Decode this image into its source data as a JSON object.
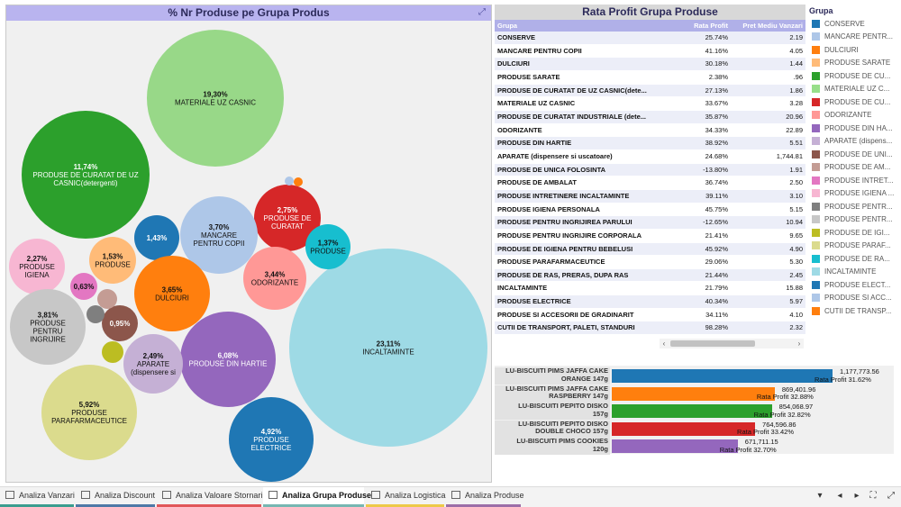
{
  "bubble_panel": {
    "title": "% Nr Produse pe Grupa Produs",
    "expand_icon": "expand-icon",
    "bubbles": [
      {
        "pct": "19,30%",
        "label": [
          "MATERIALE UZ CASNIC"
        ],
        "color": "#98d888"
      },
      {
        "pct": "11,74%",
        "label": [
          "PRODUSE DE CURATAT DE UZ",
          "CASNIC(detergenti)"
        ],
        "color": "#2ca02c"
      },
      {
        "pct": "23,11%",
        "label": [
          "INCALTAMINTE"
        ],
        "color": "#9edae5"
      },
      {
        "pct": "2,75%",
        "label": [
          "PRODUSE DE",
          "CURATAT"
        ],
        "color": "#d62728"
      },
      {
        "pct": "1,37%",
        "label": [
          "PRODUSE"
        ],
        "color": "#17becf"
      },
      {
        "pct": "3,70%",
        "label": [
          "MANCARE",
          "PENTRU COPII"
        ],
        "color": "#aec7e8"
      },
      {
        "pct": "1,43%",
        "label": [],
        "color": "#1f77b4"
      },
      {
        "pct": "3,44%",
        "label": [
          "ODORIZANTE"
        ],
        "color": "#ff9896"
      },
      {
        "pct": "2,27%",
        "label": [
          "PRODUSE",
          "IGIENA"
        ],
        "color": "#f7b6d2"
      },
      {
        "pct": "1,53%",
        "label": [
          "PRODUSE"
        ],
        "color": "#ffbb78"
      },
      {
        "pct": "0,63%",
        "label": [],
        "color": "#e377c2"
      },
      {
        "pct": "3,65%",
        "label": [
          "DULCIURI"
        ],
        "color": "#ff7f0e"
      },
      {
        "pct": "3,81%",
        "label": [
          "PRODUSE",
          "PENTRU",
          "INGRIJIRE"
        ],
        "color": "#c7c7c7"
      },
      {
        "pct": "0,95%",
        "label": [],
        "color": "#8c564b"
      },
      {
        "pct": "6,08%",
        "label": [
          "PRODUSE DIN HARTIE"
        ],
        "color": "#9467bd"
      },
      {
        "pct": "2,49%",
        "label": [
          "APARATE",
          "(dispensere si"
        ],
        "color": "#c5b0d5"
      },
      {
        "pct": "5,92%",
        "label": [
          "PRODUSE",
          "PARAFARMACEUTICE"
        ],
        "color": "#dbdb8d"
      },
      {
        "pct": "4,92%",
        "label": [
          "PRODUSE",
          "ELECTRICE"
        ],
        "color": "#1f77b4"
      },
      {
        "pct": "",
        "label": [],
        "color": "#c49c94"
      },
      {
        "pct": "",
        "label": [],
        "color": "#7f7f7f"
      },
      {
        "pct": "",
        "label": [],
        "color": "#bcbd22"
      },
      {
        "pct": "",
        "label": [],
        "color": "#aec7e8"
      },
      {
        "pct": "",
        "label": [],
        "color": "#ff7f0e"
      }
    ]
  },
  "table": {
    "title": "Rata Profit Grupa Produse",
    "headers": [
      "Grupa",
      "Rata Profit",
      "Pret Mediu Vanzari"
    ],
    "rows": [
      [
        "CONSERVE",
        "25.74%",
        "2.19"
      ],
      [
        "MANCARE PENTRU COPII",
        "41.16%",
        "4.05"
      ],
      [
        "DULCIURI",
        "30.18%",
        "1.44"
      ],
      [
        "PRODUSE SARATE",
        "2.38%",
        ".96"
      ],
      [
        "PRODUSE DE CURATAT DE UZ CASNIC(dete...",
        "27.13%",
        "1.86"
      ],
      [
        "MATERIALE UZ CASNIC",
        "33.67%",
        "3.28"
      ],
      [
        "PRODUSE DE CURATAT INDUSTRIALE (dete...",
        "35.87%",
        "20.96"
      ],
      [
        "ODORIZANTE",
        "34.33%",
        "22.89"
      ],
      [
        "PRODUSE DIN HARTIE",
        "38.92%",
        "5.51"
      ],
      [
        "APARATE (dispensere si uscatoare)",
        "24.68%",
        "1,744.81"
      ],
      [
        "PRODUSE DE UNICA FOLOSINTA",
        "-13.80%",
        "1.91"
      ],
      [
        "PRODUSE DE AMBALAT",
        "36.74%",
        "2.50"
      ],
      [
        "PRODUSE INTRETINERE INCALTAMINTE",
        "39.11%",
        "3.10"
      ],
      [
        "PRODUSE IGIENA PERSONALA",
        "45.75%",
        "5.15"
      ],
      [
        "PRODUSE PENTRU INGRIJIREA PARULUI",
        "-12.65%",
        "10.94"
      ],
      [
        "PRODUSE PENTRU INGRIJIRE CORPORALA",
        "21.41%",
        "9.65"
      ],
      [
        "PRODUSE DE IGIENA PENTRU BEBELUSI",
        "45.92%",
        "4.90"
      ],
      [
        "PRODUSE PARAFARMACEUTICE",
        "29.06%",
        "5.30"
      ],
      [
        "PRODUSE DE RAS, PRERAS, DUPA RAS",
        "21.44%",
        "2.45"
      ],
      [
        "INCALTAMINTE",
        "21.79%",
        "15.88"
      ],
      [
        "PRODUSE ELECTRICE",
        "40.34%",
        "5.97"
      ],
      [
        "PRODUSE SI ACCESORII DE GRADINARIT",
        "34.11%",
        "4.10"
      ],
      [
        "CUTII DE TRANSPORT, PALETI, STANDURI",
        "98.28%",
        "2.32"
      ]
    ],
    "scroll_left": "‹",
    "scroll_right": "›"
  },
  "legend": {
    "title": "Grupa",
    "items": [
      {
        "label": "CONSERVE",
        "color": "#1f77b4"
      },
      {
        "label": "MANCARE PENTR...",
        "color": "#aec7e8"
      },
      {
        "label": "DULCIURI",
        "color": "#ff7f0e"
      },
      {
        "label": "PRODUSE SARATE",
        "color": "#ffbb78"
      },
      {
        "label": "PRODUSE DE CU...",
        "color": "#2ca02c"
      },
      {
        "label": "MATERIALE UZ C...",
        "color": "#98df8a"
      },
      {
        "label": "PRODUSE DE CU...",
        "color": "#d62728"
      },
      {
        "label": "ODORIZANTE",
        "color": "#ff9896"
      },
      {
        "label": "PRODUSE DIN HA...",
        "color": "#9467bd"
      },
      {
        "label": "APARATE (dispens...",
        "color": "#c5b0d5"
      },
      {
        "label": "PRODUSE DE UNI...",
        "color": "#8c564b"
      },
      {
        "label": "PRODUSE DE AM...",
        "color": "#c49c94"
      },
      {
        "label": "PRODUSE INTRET...",
        "color": "#e377c2"
      },
      {
        "label": "PRODUSE IGIENA ...",
        "color": "#f7b6d2"
      },
      {
        "label": "PRODUSE PENTR...",
        "color": "#7f7f7f"
      },
      {
        "label": "PRODUSE PENTR...",
        "color": "#c7c7c7"
      },
      {
        "label": "PRODUSE DE IGI...",
        "color": "#bcbd22"
      },
      {
        "label": "PRODUSE PARAF...",
        "color": "#dbdb8d"
      },
      {
        "label": "PRODUSE DE RA...",
        "color": "#17becf"
      },
      {
        "label": "INCALTAMINTE",
        "color": "#9edae5"
      },
      {
        "label": "PRODUSE ELECT...",
        "color": "#1f77b4"
      },
      {
        "label": "PRODUSE SI ACC...",
        "color": "#aec7e8"
      },
      {
        "label": "CUTII DE TRANSP...",
        "color": "#ff7f0e"
      }
    ]
  },
  "bar_chart": {
    "max_value": 1177773.56,
    "bars": [
      {
        "label": [
          "LU-BISCUITI PIMS JAFFA CAKE",
          "ORANGE 147g"
        ],
        "value": 1177773.56,
        "value_text": "1,177,773.56",
        "rate_text": "Rata Profit 31.62%",
        "color": "#1f77b4"
      },
      {
        "label": [
          "LU-BISCUITI PIMS JAFFA CAKE",
          "RASPBERRY 147g"
        ],
        "value": 869401.96,
        "value_text": "869,401.96",
        "rate_text": "Rata Profit 32.88%",
        "color": "#ff7f0e"
      },
      {
        "label": [
          "LU-BISCUITI PEPITO DISKO",
          "157g"
        ],
        "value": 854068.97,
        "value_text": "854,068.97",
        "rate_text": "Rata Profit 32.82%",
        "color": "#2ca02c"
      },
      {
        "label": [
          "LU-BISCUITI PEPITO DISKO",
          "DOUBLE CHOCO 157g"
        ],
        "value": 764596.86,
        "value_text": "764,596.86",
        "rate_text": "Rata Profit 33.42%",
        "color": "#d62728"
      },
      {
        "label": [
          "LU-BISCUITI PIMS COOKIES",
          "120g"
        ],
        "value": 671711.15,
        "value_text": "671,711.15",
        "rate_text": "Rata Profit 32.70%",
        "color": "#9467bd"
      }
    ]
  },
  "tabs": [
    {
      "label": "Analiza Vanzari",
      "color": "#3a9d8f",
      "active": false
    },
    {
      "label": "Analiza Discount",
      "color": "#4e79a7",
      "active": false
    },
    {
      "label": "Analiza Valoare Stornari",
      "color": "#e15759",
      "active": false
    },
    {
      "label": "Analiza Grupa Produse",
      "color": "#76b7b2",
      "active": true
    },
    {
      "label": "Analiza Logistica",
      "color": "#edc948",
      "active": false
    },
    {
      "label": "Analiza Produse",
      "color": "#9c6ea8",
      "active": false
    }
  ],
  "nav_controls": {
    "sheet_list": "▾",
    "prev": "◂",
    "next": "▸",
    "fit": "⛶",
    "fullscreen": "⤢"
  }
}
